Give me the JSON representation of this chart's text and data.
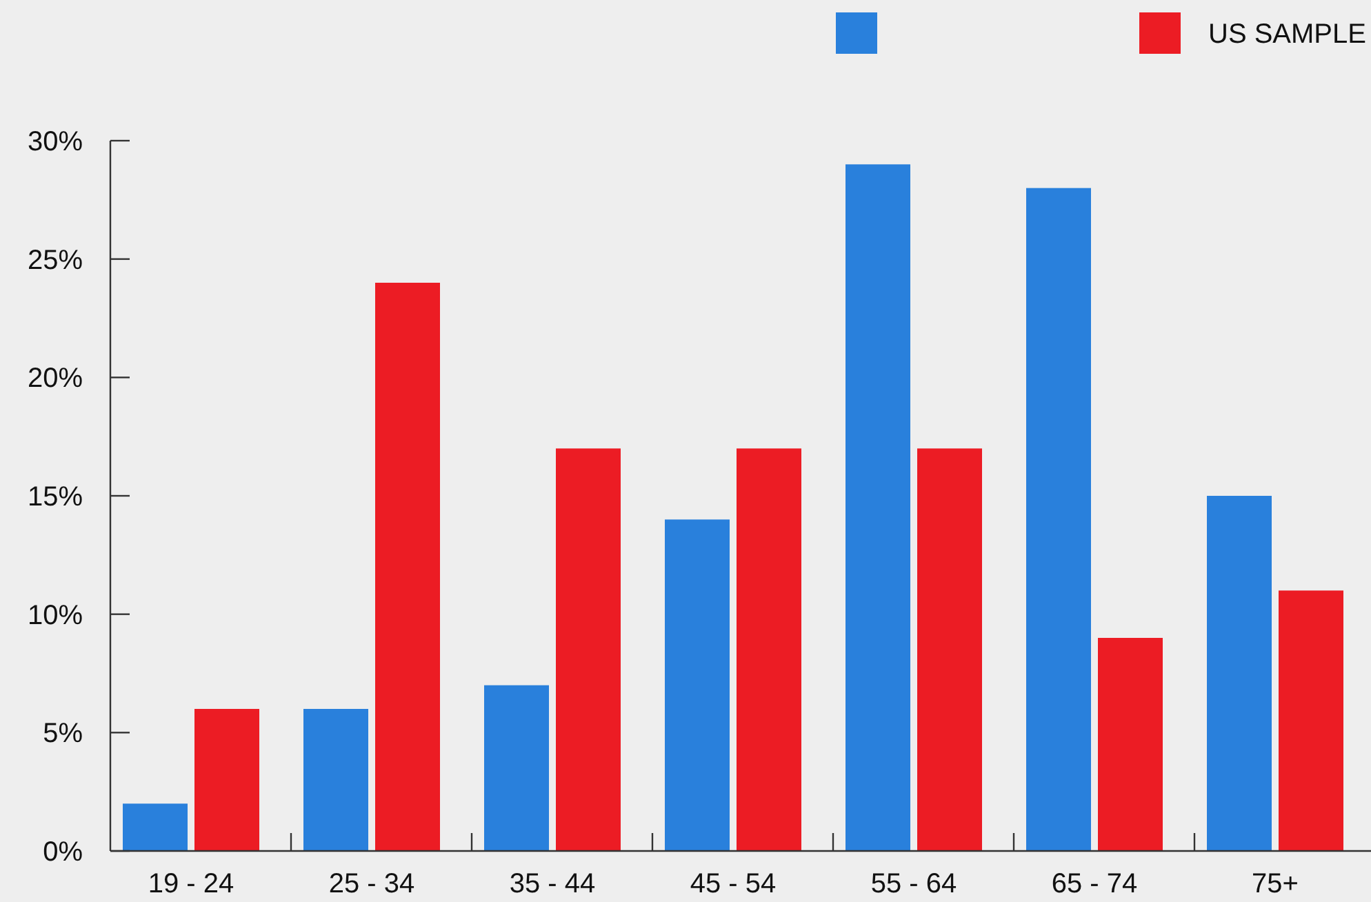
{
  "chart_data": {
    "type": "bar",
    "categories": [
      "19 - 24",
      "25 - 34",
      "35 - 44",
      "45 - 54",
      "55 - 64",
      "65 - 74",
      "75+"
    ],
    "series": [
      {
        "color": "#2980dc",
        "values": [
          2,
          6,
          7,
          14,
          29,
          28,
          15
        ]
      },
      {
        "name": "US SAMPLE",
        "color": "#ec1c24",
        "values": [
          6,
          24,
          17,
          17,
          17,
          9,
          11
        ]
      }
    ],
    "ylim": [
      0,
      30
    ],
    "yticks": [
      {
        "value": 0,
        "label": "0%"
      },
      {
        "value": 5,
        "label": "5%"
      },
      {
        "value": 10,
        "label": "10%"
      },
      {
        "value": 15,
        "label": "15%"
      },
      {
        "value": 20,
        "label": "20%"
      },
      {
        "value": 25,
        "label": "25%"
      },
      {
        "value": 30,
        "label": "30%"
      }
    ],
    "grid": false,
    "legend": "top right"
  }
}
